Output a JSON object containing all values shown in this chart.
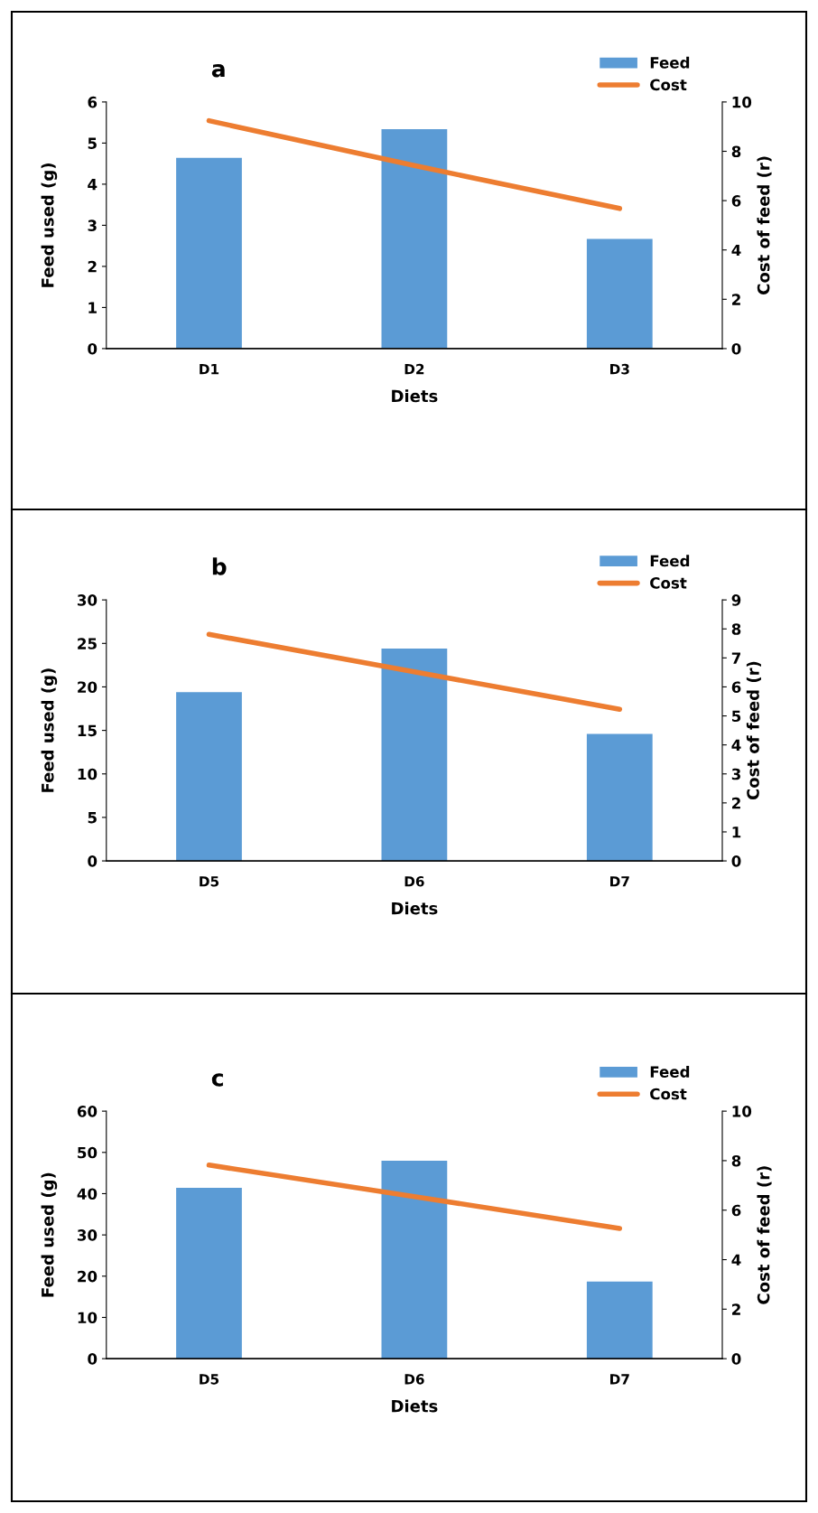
{
  "chart_data": [
    {
      "type": "bar",
      "title": "a",
      "xlabel": "Diets",
      "ylabel": "Feed used (g)",
      "y2label": "Cost of feed (r)",
      "categories": [
        "D1",
        "D2",
        "D3"
      ],
      "series": [
        {
          "name": "Feed",
          "color": "#5b9bd5",
          "values": [
            4.64,
            5.34,
            2.67
          ]
        },
        {
          "name": "Cost",
          "type": "line",
          "axis": "y2",
          "color": "#ed7d31",
          "values": [
            9.24,
            7.42,
            5.68
          ]
        }
      ],
      "ylim": [
        0,
        6
      ],
      "yticks": [
        0,
        1,
        2,
        3,
        4,
        5,
        6
      ],
      "y2lim": [
        0,
        10
      ],
      "y2ticks": [
        0,
        2,
        4,
        6,
        8,
        10
      ],
      "legend": "top right",
      "grid": false,
      "marker": "none"
    },
    {
      "type": "bar",
      "title": "b",
      "xlabel": "Diets",
      "ylabel": "Feed used (g)",
      "y2label": "Cost of feed (r)",
      "categories": [
        "D5",
        "D6",
        "D7"
      ],
      "series": [
        {
          "name": "Feed",
          "color": "#5b9bd5",
          "values": [
            19.4,
            24.4,
            14.6
          ]
        },
        {
          "name": "Cost",
          "type": "line",
          "axis": "y2",
          "color": "#ed7d31",
          "values": [
            7.81,
            6.52,
            5.23
          ]
        }
      ],
      "ylim": [
        0,
        30
      ],
      "yticks": [
        0,
        5,
        10,
        15,
        20,
        25,
        30
      ],
      "y2lim": [
        0,
        9
      ],
      "y2ticks": [
        0,
        1,
        2,
        3,
        4,
        5,
        6,
        7,
        8,
        9
      ],
      "legend": "top right",
      "grid": false,
      "marker": "none"
    },
    {
      "type": "bar",
      "title": "c",
      "xlabel": "Diets",
      "ylabel": "Feed used (g)",
      "y2label": "Cost of feed (r)",
      "categories": [
        "D5",
        "D6",
        "D7"
      ],
      "series": [
        {
          "name": "Feed",
          "color": "#5b9bd5",
          "values": [
            41.4,
            48.0,
            18.7
          ]
        },
        {
          "name": "Cost",
          "type": "line",
          "axis": "y2",
          "color": "#ed7d31",
          "values": [
            7.82,
            6.55,
            5.26
          ]
        }
      ],
      "ylim": [
        0,
        60
      ],
      "yticks": [
        0,
        10,
        20,
        30,
        40,
        50,
        60
      ],
      "y2lim": [
        0,
        10
      ],
      "y2ticks": [
        0,
        2,
        4,
        6,
        8,
        10
      ],
      "legend": "top right",
      "grid": false,
      "marker": "none"
    }
  ]
}
